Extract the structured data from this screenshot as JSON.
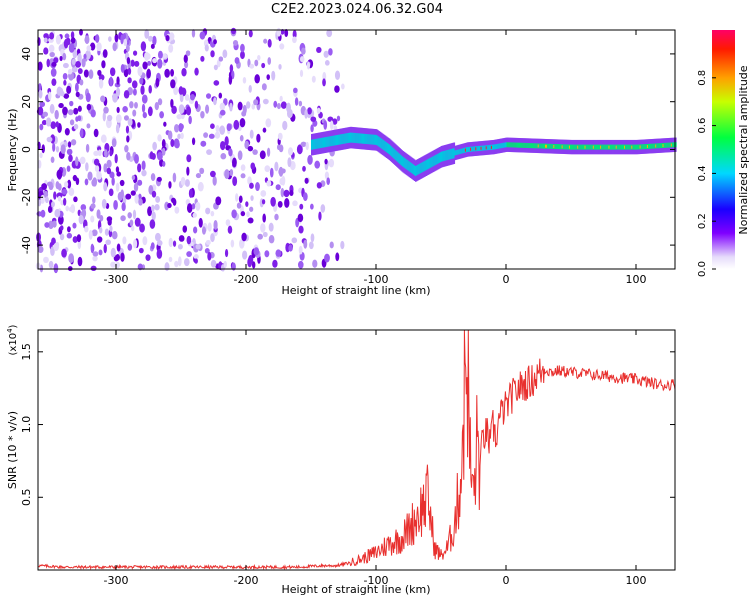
{
  "title": "C2E2.2023.024.06.32.G04",
  "colors": {
    "spectrum_colormap": [
      "#ffffff",
      "#cfbdf7",
      "#7f00ff",
      "#0000ff",
      "#00ffff",
      "#00ff00",
      "#ffff00",
      "#ff7f00",
      "#ff0000"
    ],
    "snr_line": "#e8302e",
    "axis": "#000000"
  },
  "chart_data": [
    {
      "type": "heatmap",
      "title": "",
      "xlabel": "Height of straight line (km)",
      "ylabel": "Frequency (Hz)",
      "xlim": [
        -360,
        130
      ],
      "ylim": [
        -50,
        50
      ],
      "xticks": [
        -300,
        -200,
        -100,
        0,
        100
      ],
      "yticks": [
        -40,
        -20,
        0,
        20,
        40
      ],
      "colorbar": {
        "label": "Normalized spectral amplitude",
        "range": [
          0,
          1
        ],
        "ticks": [
          0.0,
          0.2,
          0.4,
          0.6,
          0.8
        ],
        "tick_labels": [
          "0.0",
          "0.2",
          "0.4",
          "0.6",
          "0.8"
        ]
      },
      "ridge": {
        "description_points": [
          {
            "x": -150,
            "y": 2
          },
          {
            "x": -120,
            "y": 5
          },
          {
            "x": -100,
            "y": 4
          },
          {
            "x": -90,
            "y": 0
          },
          {
            "x": -80,
            "y": -5
          },
          {
            "x": -70,
            "y": -9
          },
          {
            "x": -60,
            "y": -6
          },
          {
            "x": -50,
            "y": -3
          },
          {
            "x": -30,
            "y": 0
          },
          {
            "x": -10,
            "y": 1
          },
          {
            "x": 0,
            "y": 2
          },
          {
            "x": 50,
            "y": 1
          },
          {
            "x": 100,
            "y": 1
          },
          {
            "x": 130,
            "y": 2
          }
        ],
        "noise_region_x": [
          -360,
          -125
        ]
      }
    },
    {
      "type": "line",
      "title": "",
      "xlabel": "Height of straight line (km)",
      "ylabel": "SNR (10 * v/v)",
      "y_multiplier": "(x10",
      "y_multiplier_exp": "4",
      "xlim": [
        -360,
        130
      ],
      "ylim": [
        0,
        1.65
      ],
      "xticks": [
        -300,
        -200,
        -100,
        0,
        100
      ],
      "yticks": [
        0.5,
        1.0,
        1.5
      ],
      "ytick_labels": [
        "0.5",
        "1.0",
        "1.5"
      ],
      "series": [
        {
          "x": [
            -360,
            -340,
            -320,
            -300,
            -280,
            -260,
            -240,
            -220,
            -200,
            -180,
            -160,
            -140,
            -130,
            -120,
            -110,
            -100,
            -95,
            -90,
            -85,
            -80,
            -75,
            -70,
            -65,
            -60,
            -55,
            -50,
            -45,
            -40,
            -35,
            -32,
            -30,
            -28,
            -25,
            -22,
            -20,
            -18,
            -15,
            -12,
            -10,
            -8,
            -5,
            -2,
            0,
            5,
            10,
            15,
            20,
            25,
            30,
            35,
            40,
            50,
            60,
            70,
            80,
            90,
            100,
            110,
            120,
            130
          ],
          "y": [
            0.03,
            0.02,
            0.02,
            0.02,
            0.02,
            0.02,
            0.02,
            0.02,
            0.02,
            0.02,
            0.02,
            0.03,
            0.03,
            0.05,
            0.08,
            0.12,
            0.15,
            0.18,
            0.2,
            0.22,
            0.28,
            0.35,
            0.42,
            0.5,
            0.15,
            0.1,
            0.15,
            0.3,
            0.6,
            1.2,
            1.6,
            0.8,
            0.5,
            0.9,
            0.7,
            0.9,
            0.95,
            0.85,
            1.0,
            0.9,
            1.05,
            1.1,
            1.12,
            1.2,
            1.25,
            1.28,
            1.3,
            1.35,
            1.38,
            1.36,
            1.37,
            1.36,
            1.35,
            1.34,
            1.33,
            1.32,
            1.31,
            1.29,
            1.27,
            1.28
          ]
        }
      ]
    }
  ]
}
